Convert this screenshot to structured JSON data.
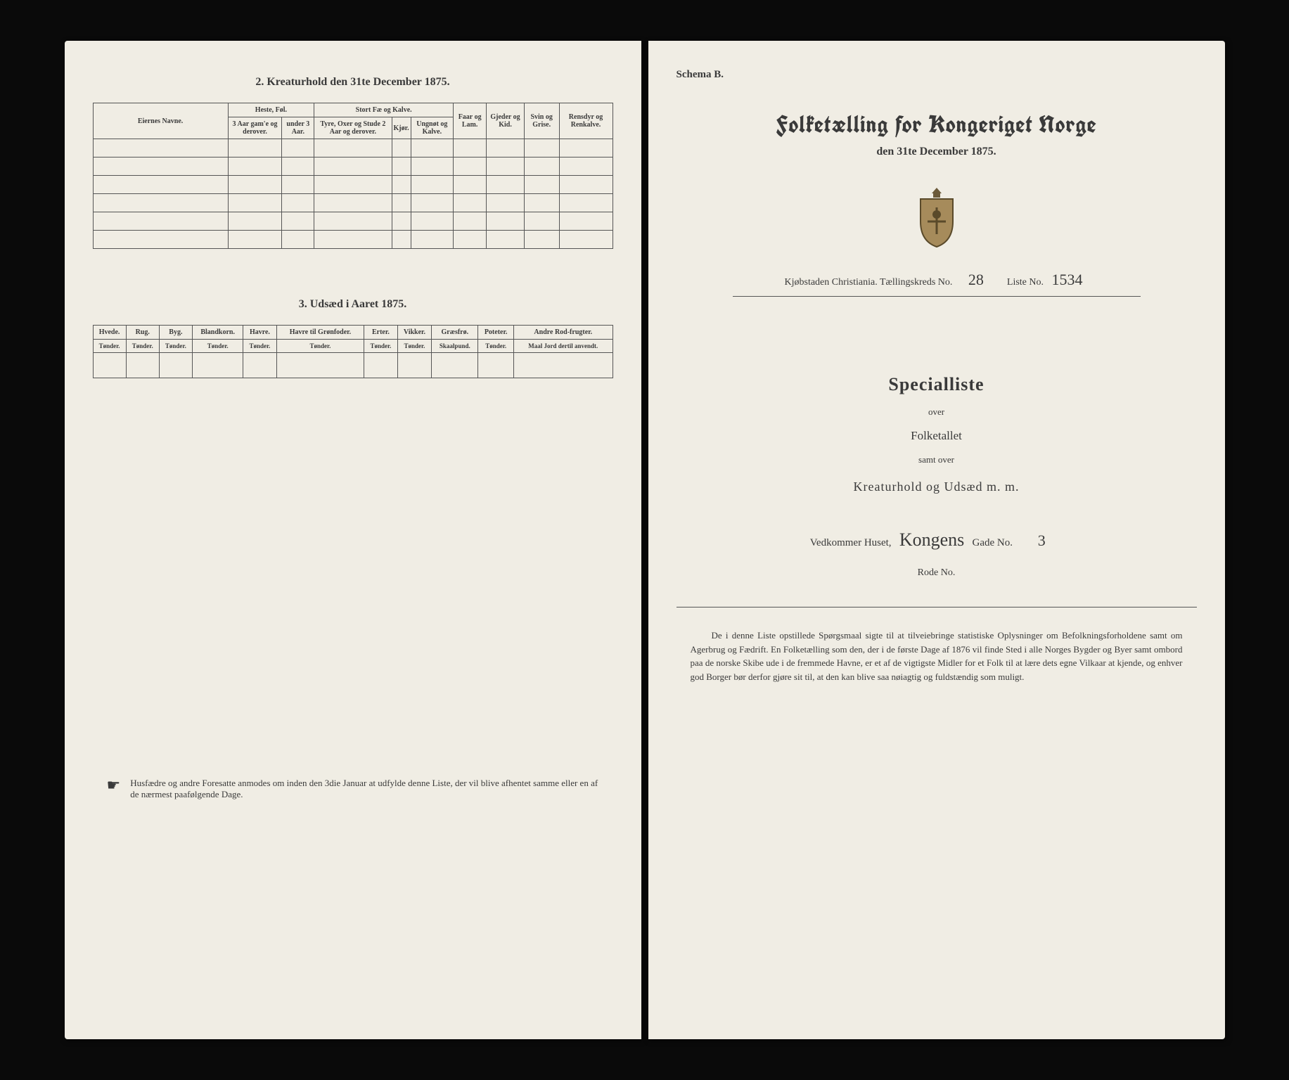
{
  "left": {
    "section2_title": "2. Kreaturhold den 31te December 1875.",
    "t2": {
      "owners": "Eiernes Navne.",
      "horses_group": "Heste, Føl.",
      "horses_cols": [
        "3 Aar gam'e og derover.",
        "under 3 Aar."
      ],
      "cattle_group": "Stort Fæ og Kalve.",
      "cattle_cols": [
        "Tyre, Oxer og Stude 2 Aar og derover.",
        "Kjør.",
        "Ungnøt og Kalve."
      ],
      "sheep": "Faar og Lam.",
      "goats": "Gjeder og Kid.",
      "pigs": "Svin og Grise.",
      "reindeer": "Rensdyr og Renkalve."
    },
    "section3_title": "3. Udsæd i Aaret 1875.",
    "t3": {
      "cols": [
        {
          "h": "Hvede.",
          "u": "Tønder."
        },
        {
          "h": "Rug.",
          "u": "Tønder."
        },
        {
          "h": "Byg.",
          "u": "Tønder."
        },
        {
          "h": "Blandkorn.",
          "u": "Tønder."
        },
        {
          "h": "Havre.",
          "u": "Tønder."
        },
        {
          "h": "Havre til Grønfoder.",
          "u": "Tønder."
        },
        {
          "h": "Erter.",
          "u": "Tønder."
        },
        {
          "h": "Vikker.",
          "u": "Tønder."
        },
        {
          "h": "Græsfrø.",
          "u": "Skaalpund."
        },
        {
          "h": "Poteter.",
          "u": "Tønder."
        },
        {
          "h": "Andre Rod-frugter.",
          "u": "Maal Jord dertil anvendt."
        }
      ]
    },
    "footnote": "Husfædre og andre Foresatte anmodes om inden den 3die Januar at udfylde denne Liste, der vil blive afhentet samme eller en af de nærmest paafølgende Dage."
  },
  "right": {
    "schema": "Schema B.",
    "main_title": "Folketælling for Kongeriget Norge",
    "sub_date": "den 31te December 1875.",
    "location_label": "Kjøbstaden Christiania.   Tællingskreds No.",
    "kreds_no": "28",
    "liste_label": "Liste No.",
    "liste_no": "1534",
    "special_heading": "Specialliste",
    "over": "over",
    "folketallet": "Folketallet",
    "samt_over": "samt over",
    "kreaturhold": "Kreaturhold og Udsæd m. m.",
    "house_label": "Vedkommer Huset,",
    "street": "Kongens",
    "gade_label": "Gade No.",
    "gade_no": "3",
    "rode_label": "Rode No.",
    "disclaimer": "De i denne Liste opstillede Spørgsmaal sigte til at tilveiebringe statistiske Oplysninger om Befolkningsforholdene samt om Agerbrug og Fædrift. En Folketælling som den, der i de første Dage af 1876 vil finde Sted i alle Norges Bygder og Byer samt ombord paa de norske Skibe ude i de fremmede Havne, er et af de vigtigste Midler for et Folk til at lære dets egne Vilkaar at kjende, og enhver god Borger bør derfor gjøre sit til, at den kan blive saa nøiagtig og fuldstændig som muligt."
  }
}
